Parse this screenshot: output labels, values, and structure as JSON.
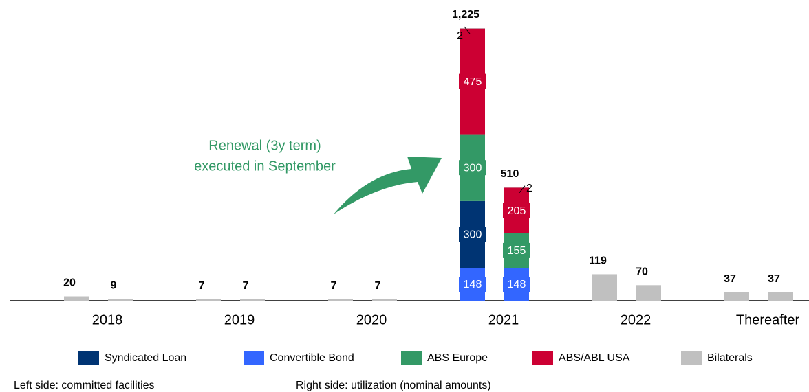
{
  "chart_data": {
    "type": "bar",
    "stacked": true,
    "categories": [
      "2018",
      "2019",
      "2020",
      "2021",
      "2022",
      "Thereafter"
    ],
    "sides": [
      "Left side: committed facilities",
      "Right side: utilization (nominal amounts)"
    ],
    "series": [
      {
        "name": "Syndicated Loan",
        "color": "#003473",
        "values": [
          [
            null,
            null
          ],
          [
            null,
            null
          ],
          [
            null,
            null
          ],
          [
            300,
            null
          ],
          [
            null,
            null
          ],
          [
            null,
            null
          ]
        ]
      },
      {
        "name": "Convertible Bond",
        "color": "#3366ff",
        "values": [
          [
            null,
            null
          ],
          [
            null,
            null
          ],
          [
            null,
            null
          ],
          [
            148,
            148
          ],
          [
            null,
            null
          ],
          [
            null,
            null
          ]
        ]
      },
      {
        "name": "ABS Europe",
        "color": "#339966",
        "values": [
          [
            null,
            null
          ],
          [
            null,
            null
          ],
          [
            null,
            null
          ],
          [
            300,
            155
          ],
          [
            null,
            null
          ],
          [
            null,
            null
          ]
        ]
      },
      {
        "name": "ABS/ABL USA",
        "color": "#cc0033",
        "values": [
          [
            null,
            null
          ],
          [
            null,
            null
          ],
          [
            null,
            null
          ],
          [
            475,
            205
          ],
          [
            null,
            null
          ],
          [
            null,
            null
          ]
        ]
      },
      {
        "name": "Bilaterals",
        "color": "#c0c0c0",
        "values": [
          [
            20,
            9
          ],
          [
            7,
            7
          ],
          [
            7,
            7
          ],
          [
            2,
            2
          ],
          [
            119,
            70
          ],
          [
            37,
            37
          ]
        ]
      }
    ],
    "totals": [
      [
        20,
        9
      ],
      [
        7,
        7
      ],
      [
        7,
        7
      ],
      [
        {
          "value": 1225,
          "label": "1,225"
        },
        510
      ],
      [
        119,
        70
      ],
      [
        37,
        37
      ]
    ],
    "annotation": [
      "Renewal (3y term)",
      "executed in September"
    ],
    "ylim": [
      0,
      1225
    ]
  }
}
